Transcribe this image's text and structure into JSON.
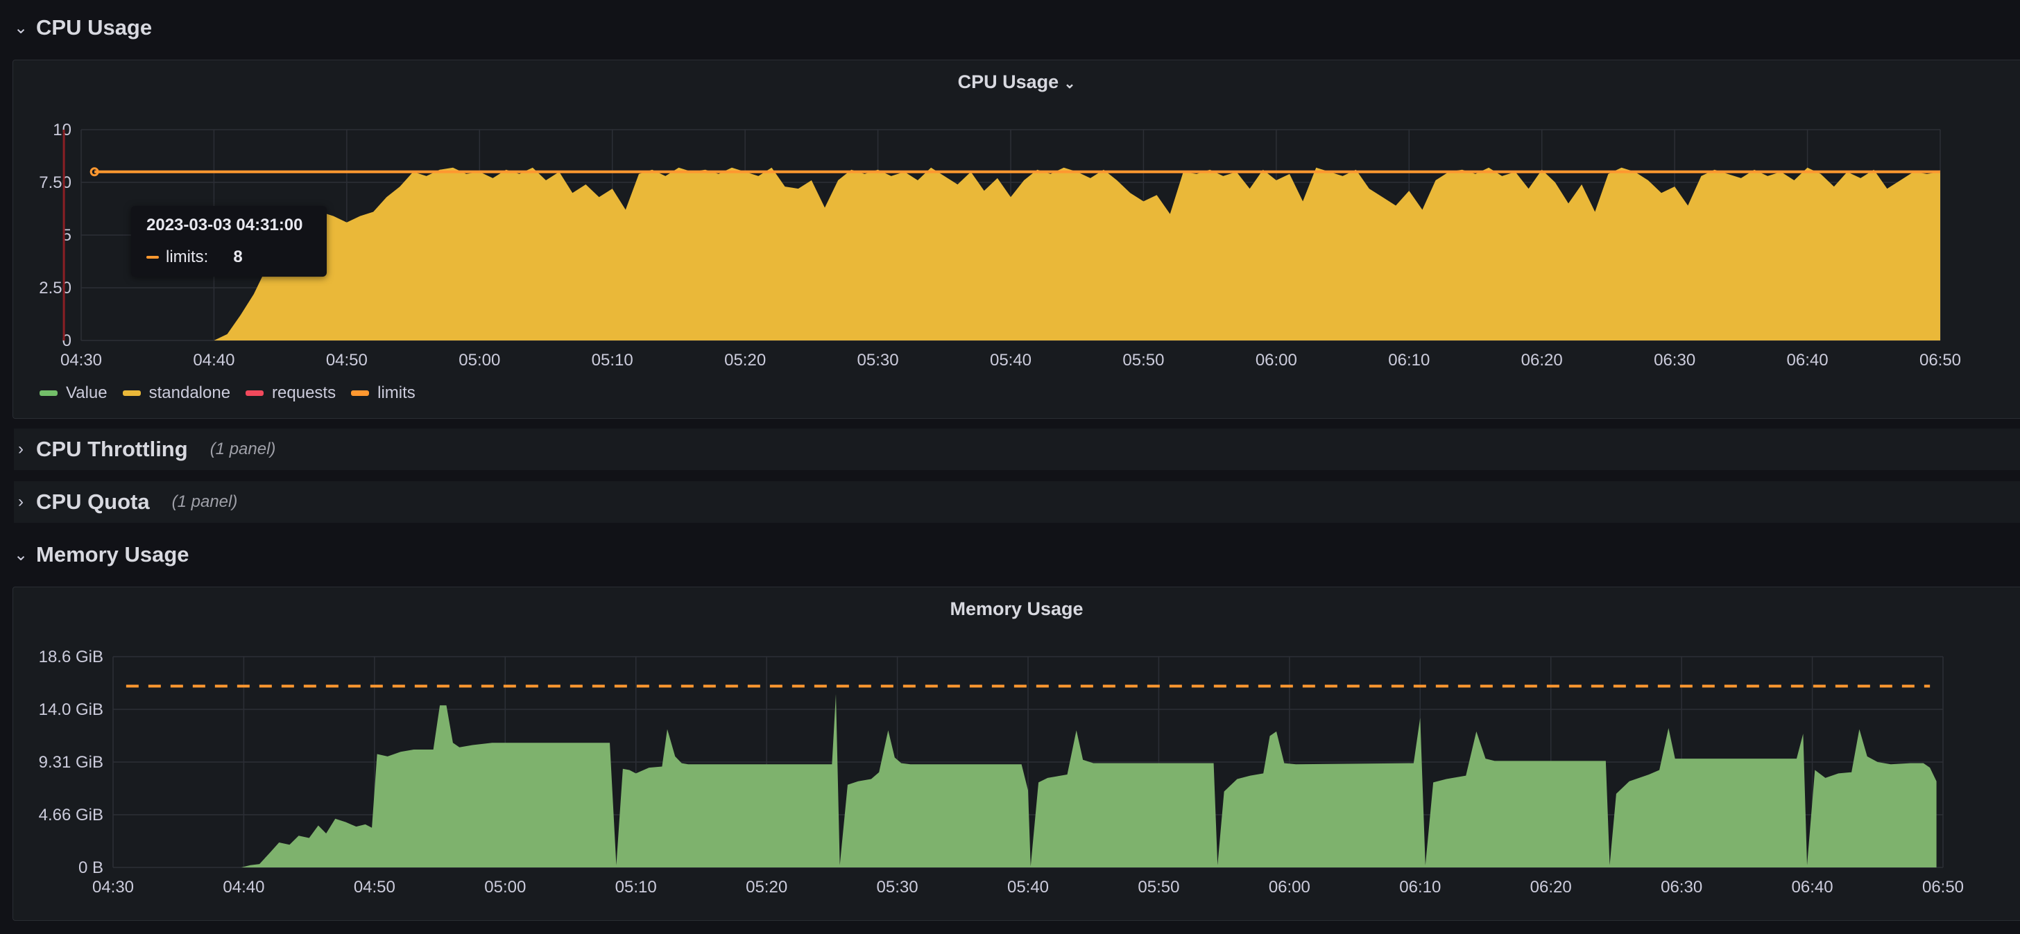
{
  "rows": {
    "cpu_usage": {
      "title": "CPU Usage"
    },
    "cpu_throttling": {
      "title": "CPU Throttling",
      "count": "(1 panel)"
    },
    "cpu_quota": {
      "title": "CPU Quota",
      "count": "(1 panel)"
    },
    "memory_usage": {
      "title": "Memory Usage"
    }
  },
  "icons": {
    "expanded": "chevron-down-icon",
    "collapsed": "chevron-right-icon"
  },
  "tooltip": {
    "time": "2023-03-03 04:31:00",
    "series": "limits:",
    "value": "8",
    "color": "#ff9830"
  },
  "colors": {
    "value": "#73bf69",
    "standalone": "#eab839",
    "requests": "#f2495c",
    "limits": "#ff9830",
    "memory_fill": "#7eb26d"
  },
  "chart_data": [
    {
      "type": "area",
      "title": "CPU Usage",
      "x_ticks": [
        "04:30",
        "04:40",
        "04:50",
        "05:00",
        "05:10",
        "05:20",
        "05:30",
        "05:40",
        "05:50",
        "06:00",
        "06:10",
        "06:20",
        "06:30",
        "06:40",
        "06:50"
      ],
      "y_ticks": [
        "0",
        "2.50",
        "5",
        "7.50",
        "10"
      ],
      "ylim": [
        0,
        10
      ],
      "x_unit": "minutes since 04:30",
      "xlim": [
        0,
        140
      ],
      "legend": [
        "Value",
        "standalone",
        "requests",
        "limits"
      ],
      "legend_placement": "bottom-left",
      "grid": true,
      "series": [
        {
          "name": "standalone",
          "color": "#eab839",
          "fill": true,
          "points": [
            [
              10,
              0
            ],
            [
              11,
              0.3
            ],
            [
              12,
              1.2
            ],
            [
              13,
              2.2
            ],
            [
              14,
              3.5
            ],
            [
              15,
              4.6
            ],
            [
              16,
              5.6
            ],
            [
              17,
              6.2
            ],
            [
              18,
              6.1
            ],
            [
              19,
              5.9
            ],
            [
              20,
              5.6
            ],
            [
              21,
              5.9
            ],
            [
              22,
              6.1
            ],
            [
              23,
              6.8
            ],
            [
              24,
              7.3
            ],
            [
              25,
              8.0
            ],
            [
              26,
              7.8
            ],
            [
              27,
              8.1
            ],
            [
              28,
              8.2
            ],
            [
              29,
              7.9
            ],
            [
              30,
              8.0
            ],
            [
              31,
              7.7
            ],
            [
              32,
              8.1
            ],
            [
              33,
              7.9
            ],
            [
              34,
              8.2
            ],
            [
              35,
              7.6
            ],
            [
              36,
              8.0
            ],
            [
              37,
              7.0
            ],
            [
              38,
              7.4
            ],
            [
              39,
              6.8
            ],
            [
              40,
              7.2
            ],
            [
              41,
              6.2
            ],
            [
              42,
              7.9
            ],
            [
              43,
              8.1
            ],
            [
              44,
              7.8
            ],
            [
              45,
              8.2
            ],
            [
              46,
              8.0
            ],
            [
              47,
              8.1
            ],
            [
              48,
              7.9
            ],
            [
              49,
              8.2
            ],
            [
              50,
              8.0
            ],
            [
              51,
              7.8
            ],
            [
              52,
              8.2
            ],
            [
              53,
              7.3
            ],
            [
              54,
              7.2
            ],
            [
              55,
              7.6
            ],
            [
              56,
              6.3
            ],
            [
              57,
              7.6
            ],
            [
              58,
              8.1
            ],
            [
              59,
              7.9
            ],
            [
              60,
              8.1
            ],
            [
              61,
              7.8
            ],
            [
              62,
              8.0
            ],
            [
              63,
              7.6
            ],
            [
              64,
              8.2
            ],
            [
              65,
              7.8
            ],
            [
              66,
              7.4
            ],
            [
              67,
              8.0
            ],
            [
              68,
              7.1
            ],
            [
              69,
              7.7
            ],
            [
              70,
              6.8
            ],
            [
              71,
              7.6
            ],
            [
              72,
              8.1
            ],
            [
              73,
              7.9
            ],
            [
              74,
              8.2
            ],
            [
              75,
              8.0
            ],
            [
              76,
              7.7
            ],
            [
              77,
              8.1
            ],
            [
              78,
              7.6
            ],
            [
              79,
              7.0
            ],
            [
              80,
              6.6
            ],
            [
              81,
              6.9
            ],
            [
              82,
              6.0
            ],
            [
              83,
              8.0
            ],
            [
              84,
              7.9
            ],
            [
              85,
              8.1
            ],
            [
              86,
              7.8
            ],
            [
              87,
              8.0
            ],
            [
              88,
              7.2
            ],
            [
              89,
              8.1
            ],
            [
              90,
              7.6
            ],
            [
              91,
              7.9
            ],
            [
              92,
              6.6
            ],
            [
              93,
              8.2
            ],
            [
              94,
              8.0
            ],
            [
              95,
              7.8
            ],
            [
              96,
              8.1
            ],
            [
              97,
              7.2
            ],
            [
              98,
              6.8
            ],
            [
              99,
              6.4
            ],
            [
              100,
              7.1
            ],
            [
              101,
              6.2
            ],
            [
              102,
              7.6
            ],
            [
              103,
              8.0
            ],
            [
              104,
              8.1
            ],
            [
              105,
              7.9
            ],
            [
              106,
              8.2
            ],
            [
              107,
              7.8
            ],
            [
              108,
              8.0
            ],
            [
              109,
              7.2
            ],
            [
              110,
              8.1
            ],
            [
              111,
              7.5
            ],
            [
              112,
              6.5
            ],
            [
              113,
              7.4
            ],
            [
              114,
              6.1
            ],
            [
              115,
              7.9
            ],
            [
              116,
              8.2
            ],
            [
              117,
              8.0
            ],
            [
              118,
              7.6
            ],
            [
              119,
              7.0
            ],
            [
              120,
              7.3
            ],
            [
              121,
              6.4
            ],
            [
              122,
              7.8
            ],
            [
              123,
              8.1
            ],
            [
              124,
              7.9
            ],
            [
              125,
              7.7
            ]
          ],
          "end_value": 8.0,
          "end_x": 140
        },
        {
          "name": "limits",
          "color": "#ff9830",
          "constant": 8,
          "x_start": 1
        }
      ]
    },
    {
      "type": "area",
      "title": "Memory Usage",
      "x_ticks": [
        "04:30",
        "04:40",
        "04:50",
        "05:00",
        "05:10",
        "05:20",
        "05:30",
        "05:40",
        "05:50",
        "06:00",
        "06:10",
        "06:20",
        "06:30",
        "06:40",
        "06:50"
      ],
      "y_ticks": [
        "0 B",
        "4.66 GiB",
        "9.31 GiB",
        "14.0 GiB",
        "18.6 GiB"
      ],
      "ylim": [
        0,
        18.6
      ],
      "y_unit": "GiB",
      "x_unit": "minutes since 04:30",
      "xlim": [
        0,
        140
      ],
      "grid": true,
      "series": [
        {
          "name": "Value",
          "color": "#7eb26d",
          "fill": true,
          "points": [
            [
              9.8,
              0
            ],
            [
              10.5,
              0.2
            ],
            [
              11.2,
              0.3
            ],
            [
              12,
              1.3
            ],
            [
              12.7,
              2.2
            ],
            [
              13.5,
              2.0
            ],
            [
              14.2,
              2.8
            ],
            [
              15,
              2.6
            ],
            [
              15.7,
              3.7
            ],
            [
              16.3,
              3.0
            ],
            [
              17,
              4.3
            ],
            [
              17.8,
              4.0
            ],
            [
              18.6,
              3.6
            ],
            [
              19.3,
              3.8
            ],
            [
              19.8,
              3.5
            ],
            [
              20.2,
              10.0
            ],
            [
              21,
              9.8
            ],
            [
              22,
              10.2
            ],
            [
              23,
              10.4
            ],
            [
              24.5,
              10.4
            ],
            [
              25,
              14.3
            ],
            [
              25.5,
              14.3
            ],
            [
              26,
              11.0
            ],
            [
              26.5,
              10.6
            ],
            [
              27.5,
              10.8
            ],
            [
              29,
              11.0
            ],
            [
              38,
              11.0
            ],
            [
              38.5,
              0.2
            ],
            [
              39,
              8.7
            ],
            [
              39.5,
              8.6
            ],
            [
              40,
              8.3
            ],
            [
              41,
              8.8
            ],
            [
              42,
              8.9
            ],
            [
              42.4,
              12.2
            ],
            [
              43,
              9.8
            ],
            [
              43.5,
              9.2
            ],
            [
              44,
              9.1
            ],
            [
              55,
              9.1
            ],
            [
              55.3,
              15.3
            ],
            [
              55.6,
              0.2
            ],
            [
              56.2,
              7.3
            ],
            [
              57,
              7.6
            ],
            [
              58,
              7.8
            ],
            [
              58.6,
              8.4
            ],
            [
              59.3,
              12.1
            ],
            [
              59.8,
              9.7
            ],
            [
              60.3,
              9.2
            ],
            [
              61,
              9.1
            ],
            [
              69.5,
              9.1
            ],
            [
              70,
              6.8
            ],
            [
              70.2,
              0.1
            ],
            [
              70.8,
              7.5
            ],
            [
              71.5,
              7.9
            ],
            [
              73,
              8.2
            ],
            [
              73.7,
              12.1
            ],
            [
              74.2,
              9.5
            ],
            [
              75,
              9.2
            ],
            [
              84.2,
              9.2
            ],
            [
              84.5,
              0.2
            ],
            [
              85,
              6.7
            ],
            [
              86,
              7.8
            ],
            [
              87,
              8.1
            ],
            [
              88,
              8.3
            ],
            [
              88.5,
              11.6
            ],
            [
              89,
              12.0
            ],
            [
              89.6,
              9.2
            ],
            [
              90.5,
              9.1
            ],
            [
              99.5,
              9.2
            ],
            [
              100,
              13.2
            ],
            [
              100.4,
              0.2
            ],
            [
              101,
              7.5
            ],
            [
              102,
              7.8
            ],
            [
              103.5,
              8.1
            ],
            [
              104.3,
              12.0
            ],
            [
              105,
              9.6
            ],
            [
              105.7,
              9.4
            ],
            [
              114.2,
              9.4
            ],
            [
              114.5,
              0.2
            ],
            [
              115,
              6.5
            ],
            [
              116,
              7.6
            ],
            [
              117.5,
              8.2
            ],
            [
              118.3,
              8.6
            ],
            [
              119,
              12.3
            ],
            [
              119.5,
              9.6
            ],
            [
              128.8,
              9.6
            ],
            [
              129.3,
              11.8
            ],
            [
              129.6,
              0.2
            ],
            [
              130.2,
              8.6
            ],
            [
              131,
              7.9
            ],
            [
              132,
              8.3
            ],
            [
              133,
              8.4
            ],
            [
              133.6,
              12.2
            ],
            [
              134.2,
              9.8
            ],
            [
              135,
              9.3
            ],
            [
              136,
              9.1
            ],
            [
              137.5,
              9.2
            ],
            [
              138.5,
              9.2
            ],
            [
              139,
              8.8
            ],
            [
              139.5,
              7.6
            ]
          ],
          "end_x": 139.5
        },
        {
          "name": "limits",
          "color": "#ff9830",
          "constant": 16,
          "dashed": true,
          "x_start": 1,
          "x_end": 139
        }
      ]
    }
  ]
}
